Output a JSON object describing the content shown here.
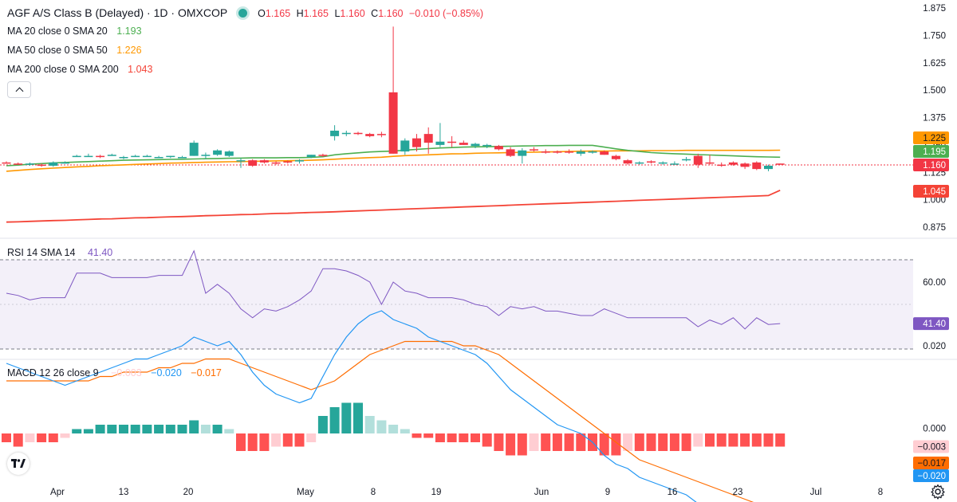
{
  "header": {
    "symbol": "AGF A/S Class B (Delayed) · 1D · OMXCOP",
    "o_label": "O",
    "o_val": "1.165",
    "h_label": "H",
    "h_val": "1.165",
    "l_label": "L",
    "l_val": "1.160",
    "c_label": "C",
    "c_val": "1.160",
    "change": "−0.010 (−0.85%)",
    "ma20_label": "MA 20 close 0 SMA 20",
    "ma20_val": "1.193",
    "ma50_label": "MA 50 close 0 SMA 50",
    "ma50_val": "1.226",
    "ma200_label": "MA 200 close 0 SMA 200",
    "ma200_val": "1.043",
    "rsi_label": "RSI 14 SMA 14",
    "rsi_val": "41.40",
    "macd_label": "MACD 12 26 close 9",
    "macd_hist_val": "−0.003",
    "macd_val": "−0.020",
    "signal_val": "−0.017"
  },
  "colors": {
    "up": "#26a69a",
    "down": "#f23645",
    "ma20": "#4caf50",
    "ma50": "#ff9800",
    "ma200": "#f44336",
    "rsi": "#7e57c2",
    "macd": "#2196f3",
    "signal": "#ff6d00",
    "hist_up_strong": "#26a69a",
    "hist_up_weak": "#b2dfdb",
    "hist_down_strong": "#ff5252",
    "hist_down_weak": "#ffcdd2"
  },
  "chart_data": {
    "type": "candlestick",
    "price_axis": {
      "ticks": [
        "1.875",
        "1.750",
        "1.625",
        "1.500",
        "1.375",
        "1.250",
        "1.125",
        "1.000",
        "0.875"
      ],
      "ylim": [
        0.85,
        1.88
      ]
    },
    "x_ticks": [
      "Apr",
      "13",
      "20",
      "May",
      "8",
      "19",
      "Jun",
      "9",
      "16",
      "23",
      "Jul",
      "8"
    ],
    "last_labels": {
      "ma50": "1.225",
      "ma20": "1.195",
      "close": "1.160",
      "ma200": "1.045"
    },
    "candles": [
      [
        1.17,
        1.175,
        1.165,
        1.165
      ],
      [
        1.165,
        1.17,
        1.16,
        1.16
      ],
      [
        1.16,
        1.17,
        1.155,
        1.165
      ],
      [
        1.16,
        1.165,
        1.15,
        1.155
      ],
      [
        1.155,
        1.175,
        1.15,
        1.17
      ],
      [
        1.17,
        1.175,
        1.165,
        1.17
      ],
      [
        1.2,
        1.205,
        1.195,
        1.2
      ],
      [
        1.2,
        1.21,
        1.195,
        1.2
      ],
      [
        1.2,
        1.205,
        1.19,
        1.195
      ],
      [
        1.205,
        1.21,
        1.2,
        1.205
      ],
      [
        1.19,
        1.2,
        1.185,
        1.195
      ],
      [
        1.2,
        1.205,
        1.195,
        1.2
      ],
      [
        1.2,
        1.205,
        1.195,
        1.2
      ],
      [
        1.195,
        1.2,
        1.19,
        1.195
      ],
      [
        1.195,
        1.2,
        1.19,
        1.2
      ],
      [
        1.195,
        1.2,
        1.19,
        1.195
      ],
      [
        1.2,
        1.27,
        1.2,
        1.26
      ],
      [
        1.2,
        1.215,
        1.185,
        1.205
      ],
      [
        1.205,
        1.23,
        1.2,
        1.225
      ],
      [
        1.2,
        1.225,
        1.195,
        1.22
      ],
      [
        1.18,
        1.19,
        1.145,
        1.18
      ],
      [
        1.18,
        1.185,
        1.15,
        1.155
      ],
      [
        1.18,
        1.185,
        1.165,
        1.17
      ],
      [
        1.17,
        1.175,
        1.16,
        1.165
      ],
      [
        1.175,
        1.18,
        1.165,
        1.17
      ],
      [
        1.175,
        1.185,
        1.165,
        1.18
      ],
      [
        1.195,
        1.205,
        1.19,
        1.205
      ],
      [
        1.205,
        1.21,
        1.195,
        1.2
      ],
      [
        1.29,
        1.34,
        1.27,
        1.315
      ],
      [
        1.3,
        1.315,
        1.29,
        1.305
      ],
      [
        1.305,
        1.31,
        1.295,
        1.3
      ],
      [
        1.3,
        1.305,
        1.285,
        1.29
      ],
      [
        1.3,
        1.31,
        1.285,
        1.295
      ],
      [
        1.49,
        1.79,
        1.21,
        1.21
      ],
      [
        1.22,
        1.28,
        1.205,
        1.27
      ],
      [
        1.28,
        1.3,
        1.22,
        1.24
      ],
      [
        1.3,
        1.33,
        1.21,
        1.26
      ],
      [
        1.25,
        1.35,
        1.24,
        1.265
      ],
      [
        1.265,
        1.29,
        1.24,
        1.26
      ],
      [
        1.26,
        1.27,
        1.25,
        1.25
      ],
      [
        1.245,
        1.26,
        1.235,
        1.255
      ],
      [
        1.245,
        1.255,
        1.235,
        1.25
      ],
      [
        1.245,
        1.25,
        1.225,
        1.23
      ],
      [
        1.23,
        1.24,
        1.195,
        1.2
      ],
      [
        1.2,
        1.235,
        1.165,
        1.225
      ],
      [
        1.23,
        1.24,
        1.22,
        1.225
      ],
      [
        1.22,
        1.23,
        1.21,
        1.215
      ],
      [
        1.22,
        1.225,
        1.21,
        1.215
      ],
      [
        1.22,
        1.23,
        1.21,
        1.215
      ],
      [
        1.21,
        1.23,
        1.2,
        1.22
      ],
      [
        1.215,
        1.225,
        1.21,
        1.22
      ],
      [
        1.22,
        1.225,
        1.205,
        1.205
      ],
      [
        1.2,
        1.205,
        1.18,
        1.185
      ],
      [
        1.18,
        1.185,
        1.16,
        1.165
      ],
      [
        1.17,
        1.175,
        1.16,
        1.17
      ],
      [
        1.175,
        1.18,
        1.165,
        1.17
      ],
      [
        1.17,
        1.175,
        1.16,
        1.17
      ],
      [
        1.165,
        1.175,
        1.16,
        1.165
      ],
      [
        1.18,
        1.195,
        1.175,
        1.185
      ],
      [
        1.2,
        1.21,
        1.145,
        1.16
      ],
      [
        1.17,
        1.205,
        1.16,
        1.165
      ],
      [
        1.16,
        1.17,
        1.15,
        1.155
      ],
      [
        1.17,
        1.175,
        1.155,
        1.16
      ],
      [
        1.165,
        1.17,
        1.14,
        1.15
      ],
      [
        1.17,
        1.175,
        1.135,
        1.14
      ],
      [
        1.14,
        1.16,
        1.13,
        1.155
      ],
      [
        1.165,
        1.165,
        1.16,
        1.16
      ]
    ],
    "ma20": [
      1.155,
      1.158,
      1.162,
      1.165,
      1.168,
      1.17,
      1.172,
      1.174,
      1.176,
      1.178,
      1.18,
      1.181,
      1.182,
      1.183,
      1.184,
      1.185,
      1.186,
      1.187,
      1.188,
      1.189,
      1.19,
      1.191,
      1.191,
      1.191,
      1.192,
      1.192,
      1.193,
      1.196,
      1.205,
      1.21,
      1.214,
      1.218,
      1.22,
      1.222,
      1.226,
      1.23,
      1.233,
      1.236,
      1.238,
      1.24,
      1.241,
      1.242,
      1.243,
      1.244,
      1.245,
      1.246,
      1.247,
      1.247,
      1.248,
      1.248,
      1.248,
      1.24,
      1.232,
      1.225,
      1.22,
      1.215,
      1.212,
      1.21,
      1.208,
      1.206,
      1.204,
      1.202,
      1.2,
      1.198,
      1.196,
      1.195,
      1.194
    ],
    "ma50": [
      1.13,
      1.134,
      1.138,
      1.141,
      1.144,
      1.147,
      1.15,
      1.152,
      1.155,
      1.157,
      1.159,
      1.161,
      1.163,
      1.165,
      1.167,
      1.168,
      1.17,
      1.171,
      1.172,
      1.173,
      1.174,
      1.175,
      1.176,
      1.177,
      1.178,
      1.179,
      1.18,
      1.182,
      1.185,
      1.188,
      1.19,
      1.192,
      1.194,
      1.198,
      1.201,
      1.203,
      1.205,
      1.207,
      1.209,
      1.21,
      1.212,
      1.213,
      1.214,
      1.215,
      1.216,
      1.217,
      1.218,
      1.219,
      1.22,
      1.221,
      1.222,
      1.222,
      1.223,
      1.223,
      1.223,
      1.224,
      1.224,
      1.224,
      1.225,
      1.225,
      1.225,
      1.225,
      1.225,
      1.225,
      1.225,
      1.225,
      1.226
    ],
    "ma200": [
      0.898,
      0.899,
      0.901,
      0.903,
      0.905,
      0.906,
      0.908,
      0.91,
      0.912,
      0.913,
      0.915,
      0.917,
      0.918,
      0.92,
      0.922,
      0.923,
      0.925,
      0.927,
      0.928,
      0.93,
      0.932,
      0.933,
      0.935,
      0.937,
      0.938,
      0.94,
      0.942,
      0.943,
      0.945,
      0.947,
      0.949,
      0.951,
      0.953,
      0.955,
      0.957,
      0.959,
      0.961,
      0.963,
      0.965,
      0.967,
      0.969,
      0.971,
      0.973,
      0.975,
      0.977,
      0.979,
      0.981,
      0.983,
      0.985,
      0.987,
      0.989,
      0.991,
      0.993,
      0.995,
      0.997,
      0.999,
      1.001,
      1.003,
      1.005,
      1.007,
      1.009,
      1.011,
      1.013,
      1.015,
      1.017,
      1.019,
      1.043
    ],
    "rsi_axis": {
      "ticks": [
        "60.00"
      ],
      "ylim": [
        25,
        77
      ],
      "band": [
        30,
        70
      ],
      "last_label": "41.40"
    },
    "rsi": [
      55,
      54,
      52,
      53,
      53,
      53,
      64,
      64,
      64,
      62,
      62,
      62,
      62,
      63,
      63,
      63,
      74,
      55,
      59,
      55,
      48,
      44,
      48,
      47,
      49,
      52,
      56,
      66,
      66,
      65,
      63,
      60,
      50,
      60,
      56,
      55,
      53,
      53,
      53,
      52,
      50,
      49,
      45,
      49,
      48,
      49,
      47,
      47,
      46,
      45,
      45,
      48,
      46,
      44,
      44,
      44,
      44,
      44,
      44,
      40,
      43,
      41,
      44,
      39,
      44,
      41,
      41.4
    ],
    "macd_axis": {
      "ticks": [
        "0.020",
        "0.000",
        "−0.003",
        "−0.017",
        "−0.020"
      ],
      "ylim": [
        -0.024,
        0.032
      ]
    },
    "macd_labels": {
      "hist": "−0.003",
      "signal": "−0.017",
      "macd": "−0.020"
    },
    "macd": [
      0.016,
      0.015,
      0.014,
      0.013,
      0.012,
      0.011,
      0.012,
      0.013,
      0.014,
      0.015,
      0.016,
      0.017,
      0.017,
      0.018,
      0.019,
      0.02,
      0.022,
      0.021,
      0.02,
      0.021,
      0.018,
      0.014,
      0.011,
      0.009,
      0.008,
      0.007,
      0.008,
      0.013,
      0.018,
      0.022,
      0.025,
      0.027,
      0.028,
      0.026,
      0.025,
      0.024,
      0.022,
      0.021,
      0.02,
      0.019,
      0.018,
      0.016,
      0.013,
      0.01,
      0.008,
      0.006,
      0.004,
      0.002,
      0.001,
      0.0,
      -0.002,
      -0.005,
      -0.007,
      -0.008,
      -0.01,
      -0.011,
      -0.012,
      -0.013,
      -0.014,
      -0.016,
      -0.017,
      -0.018,
      -0.019,
      -0.019,
      -0.02,
      -0.02,
      -0.02
    ],
    "signal": [
      0.012,
      0.012,
      0.012,
      0.012,
      0.012,
      0.012,
      0.012,
      0.012,
      0.013,
      0.013,
      0.014,
      0.014,
      0.014,
      0.015,
      0.015,
      0.016,
      0.016,
      0.017,
      0.017,
      0.017,
      0.016,
      0.015,
      0.014,
      0.013,
      0.012,
      0.011,
      0.01,
      0.011,
      0.012,
      0.014,
      0.016,
      0.018,
      0.019,
      0.02,
      0.021,
      0.021,
      0.021,
      0.021,
      0.021,
      0.02,
      0.02,
      0.019,
      0.018,
      0.016,
      0.014,
      0.012,
      0.01,
      0.008,
      0.006,
      0.004,
      0.002,
      0.0,
      -0.002,
      -0.004,
      -0.006,
      -0.007,
      -0.008,
      -0.009,
      -0.01,
      -0.011,
      -0.012,
      -0.013,
      -0.014,
      -0.015,
      -0.016,
      -0.016,
      -0.017
    ],
    "hist": [
      -0.002,
      -0.003,
      -0.002,
      -0.002,
      -0.002,
      -0.001,
      0.001,
      0.001,
      0.002,
      0.002,
      0.002,
      0.002,
      0.002,
      0.002,
      0.002,
      0.002,
      0.003,
      0.002,
      0.002,
      0.001,
      -0.004,
      -0.004,
      -0.004,
      -0.003,
      -0.003,
      -0.003,
      -0.002,
      0.004,
      0.006,
      0.007,
      0.007,
      0.004,
      0.003,
      0.002,
      0.001,
      -0.001,
      -0.001,
      -0.002,
      -0.002,
      -0.002,
      -0.002,
      -0.003,
      -0.004,
      -0.005,
      -0.005,
      -0.004,
      -0.004,
      -0.004,
      -0.004,
      -0.004,
      -0.004,
      -0.005,
      -0.005,
      -0.004,
      -0.004,
      -0.004,
      -0.004,
      -0.004,
      -0.004,
      -0.003,
      -0.003,
      -0.003,
      -0.003,
      -0.003,
      -0.003,
      -0.003,
      -0.003
    ]
  }
}
